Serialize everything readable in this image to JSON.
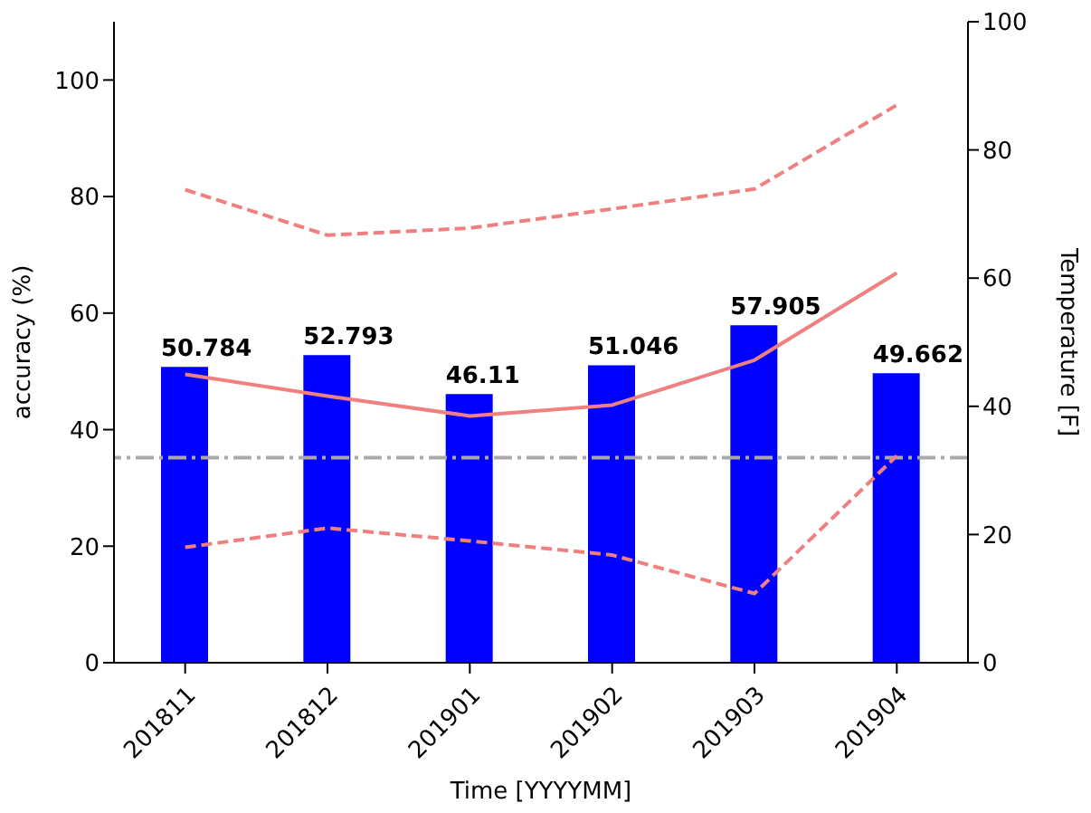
{
  "chart_data": {
    "type": "bar",
    "xlabel": "Time [YYYYMM]",
    "ylabel": "accuracy (%)",
    "y2label": "Temperature [F]",
    "categories": [
      "201811",
      "201812",
      "201901",
      "201902",
      "201903",
      "201904"
    ],
    "series": [
      {
        "color": "#0000ff",
        "values": [
          50.784,
          52.793,
          46.11,
          51.046,
          57.905,
          49.662
        ],
        "data_labels": true
      },
      {
        "type": "line",
        "axis": "y2",
        "color": "#f08080",
        "line_style": "solid",
        "values": [
          45.0,
          41.6,
          38.5,
          40.2,
          47.2,
          60.8
        ]
      },
      {
        "type": "line",
        "axis": "y2",
        "color": "#f08080",
        "line_style": "dashed",
        "values": [
          73.8,
          66.7,
          67.8,
          70.8,
          73.9,
          87
        ]
      },
      {
        "type": "line",
        "axis": "y2",
        "color": "#f08080",
        "line_style": "dashed",
        "values": [
          18,
          21,
          19,
          16.8,
          10.8,
          32.3
        ]
      }
    ],
    "ylim": [
      0,
      110
    ],
    "yticks": [
      0,
      20,
      40,
      60,
      80,
      100
    ],
    "y2lim": [
      0,
      100
    ],
    "y2ticks": [
      0,
      20,
      40,
      60,
      80,
      100
    ],
    "ref_lines": [
      {
        "axis": "y2",
        "value": 32,
        "color": "#a9a9a9",
        "line_style": "dashed"
      }
    ],
    "grid": false,
    "legend": false,
    "marker": "none"
  }
}
